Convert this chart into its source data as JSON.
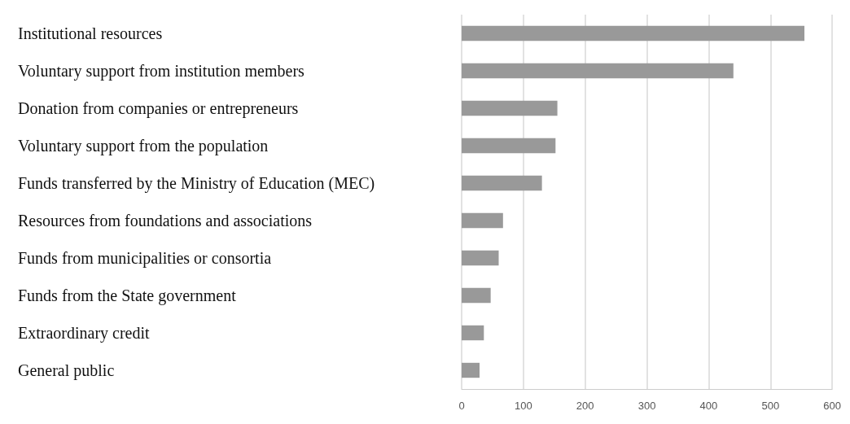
{
  "chart_data": {
    "type": "bar",
    "orientation": "horizontal",
    "categories": [
      "Institutional resources",
      "Voluntary support from institution members",
      "Donation from companies or entrepreneurs",
      "Voluntary support from the population",
      "Funds transferred by the Ministry of Education (MEC)",
      "Resources from foundations and associations",
      "Funds from municipalities or consortia",
      "Funds from the State government",
      "Extraordinary credit",
      "General public"
    ],
    "values": [
      555,
      440,
      155,
      152,
      130,
      67,
      60,
      47,
      36,
      29
    ],
    "color": "#999999",
    "xlim": [
      0,
      600
    ],
    "xticks": [
      0,
      100,
      200,
      300,
      400,
      500,
      600
    ],
    "grid": "x"
  }
}
